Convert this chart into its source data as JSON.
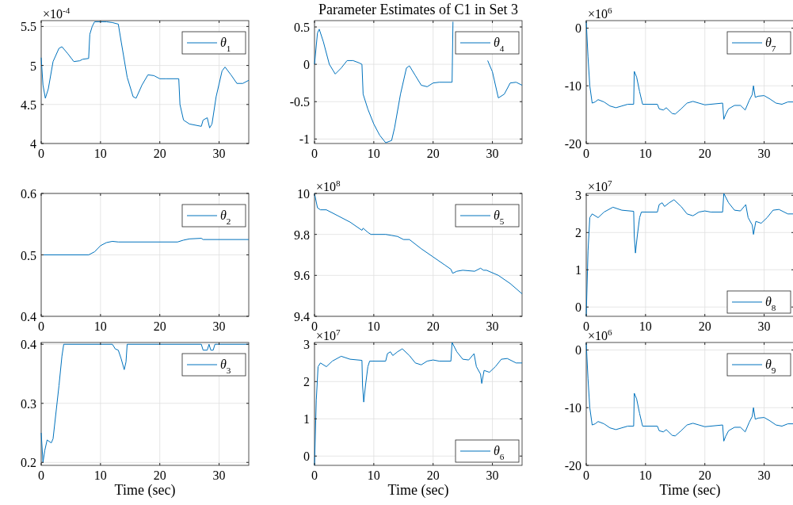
{
  "chart_data": [
    {
      "type": "line",
      "x": [
        0,
        0.3,
        0.7,
        1.2,
        2,
        3,
        3.5,
        4.5,
        5.5,
        6.5,
        7,
        8,
        8.2,
        8.6,
        9,
        10,
        11,
        12,
        13,
        13.5,
        14.5,
        15.5,
        16,
        17,
        18,
        19,
        20,
        21,
        23.2,
        23.4,
        24,
        25,
        27,
        27.3,
        28,
        28.4,
        28.8,
        29.5,
        30.5,
        31,
        32,
        33,
        34,
        35
      ],
      "series": [
        {
          "name": "θ$_{1}$",
          "color": "#0072bd",
          "values": [
            5.1,
            4.75,
            4.58,
            4.7,
            5.05,
            5.22,
            5.24,
            5.15,
            5.05,
            5.06,
            5.08,
            5.09,
            5.4,
            5.5,
            5.56,
            5.56,
            5.56,
            5.55,
            5.53,
            5.3,
            4.85,
            4.6,
            4.58,
            4.75,
            4.88,
            4.87,
            4.83,
            4.83,
            4.83,
            4.5,
            4.3,
            4.25,
            4.22,
            4.3,
            4.33,
            4.2,
            4.25,
            4.6,
            4.93,
            4.98,
            4.88,
            4.77,
            4.77,
            4.81
          ]
        }
      ],
      "xlim": [
        0,
        35
      ],
      "xticks": [
        0,
        10,
        20,
        30
      ],
      "ylim": [
        4,
        5.575
      ],
      "yticks": [
        4,
        4.5,
        5,
        5.5
      ],
      "grid": true,
      "legend": "top right",
      "annotations": [
        "×10$^{-4}$"
      ]
    },
    {
      "type": "line",
      "title": "Parameter Estimates of C1 in Set 3",
      "x": [
        0,
        0.5,
        0.8,
        1.5,
        2.5,
        3.5,
        4.5,
        5.5,
        6.5,
        7.5,
        8,
        8.2,
        9,
        10,
        11,
        12,
        13,
        13.5,
        14.5,
        15.5,
        16,
        17,
        18,
        19,
        20,
        21,
        23.2,
        23.35,
        28.8,
        29.2,
        30,
        31,
        32,
        33,
        34,
        35
      ],
      "series": [
        {
          "name": "θ$_{4}$",
          "color": "#0072bd",
          "values": [
            0,
            0.42,
            0.47,
            0.3,
            0,
            -0.13,
            -0.05,
            0.05,
            0.05,
            0.02,
            0,
            -0.4,
            -0.6,
            -0.8,
            -0.95,
            -1.05,
            -1.02,
            -0.85,
            -0.4,
            -0.05,
            -0.02,
            -0.15,
            -0.28,
            -0.3,
            -0.25,
            -0.24,
            -0.24,
            0.57,
            null,
            0.05,
            -0.1,
            -0.45,
            -0.4,
            -0.25,
            -0.24,
            -0.28
          ]
        }
      ],
      "xlim": [
        0,
        35
      ],
      "xticks": [
        0,
        10,
        20,
        30
      ],
      "ylim": [
        -1.06,
        0.585
      ],
      "yticks": [
        -1,
        -0.5,
        0,
        0.5
      ],
      "grid": true,
      "legend": "top right"
    },
    {
      "type": "line",
      "x": [
        0,
        0.3,
        0.6,
        1,
        1.5,
        2,
        3,
        4,
        5,
        6,
        7,
        8,
        8.1,
        8.5,
        9,
        9.5,
        12,
        12.3,
        13,
        13.5,
        14.5,
        15,
        16,
        17,
        18,
        19,
        20,
        23,
        23.2,
        23.5,
        24,
        25,
        26,
        26.8,
        27.5,
        28,
        28.2,
        28.5,
        29,
        30,
        31,
        32,
        33,
        34,
        35
      ],
      "series": [
        {
          "name": "θ$_{7}$",
          "color": "#0072bd",
          "values": [
            1.2,
            -5,
            -10,
            -13,
            -12.8,
            -12.4,
            -12.8,
            -13.5,
            -13.8,
            -13.5,
            -13.2,
            -13.2,
            -7.5,
            -8.5,
            -11,
            -13.2,
            -13.2,
            -14,
            -14.2,
            -13.8,
            -14.8,
            -14.9,
            -14,
            -13,
            -12.7,
            -13,
            -13.3,
            -13,
            -15.8,
            -15,
            -14,
            -13.4,
            -13.4,
            -14.2,
            -12.5,
            -11.5,
            -10,
            -12,
            -11.8,
            -11.7,
            -12.3,
            -13,
            -13.2,
            -12.8,
            -12.8
          ]
        }
      ],
      "xlim": [
        0,
        35
      ],
      "xticks": [
        0,
        10,
        20,
        30
      ],
      "ylim": [
        -20,
        1.3
      ],
      "yticks": [
        -20,
        -10,
        0
      ],
      "grid": true,
      "legend": "top right",
      "annotations": [
        "×10$^{6}$"
      ]
    },
    {
      "type": "line",
      "x": [
        0,
        8,
        9,
        10,
        11,
        12,
        13,
        23,
        24,
        25,
        27,
        27.3,
        35
      ],
      "series": [
        {
          "name": "θ$_{2}$",
          "color": "#0072bd",
          "values": [
            0.5,
            0.5,
            0.505,
            0.515,
            0.52,
            0.522,
            0.521,
            0.521,
            0.524,
            0.526,
            0.527,
            0.525,
            0.525
          ]
        }
      ],
      "xlim": [
        0,
        35
      ],
      "xticks": [
        0,
        10,
        20,
        30
      ],
      "ylim": [
        0.4,
        0.6
      ],
      "yticks": [
        0.4,
        0.5,
        0.6
      ],
      "grid": true,
      "legend": "top right"
    },
    {
      "type": "line",
      "x": [
        0,
        0.5,
        1,
        2,
        4,
        6,
        8,
        8.2,
        9,
        9.5,
        12,
        13,
        14,
        15,
        16,
        18,
        20,
        22,
        23,
        23.3,
        24,
        25,
        27,
        28,
        28.5,
        29,
        31,
        33,
        35
      ],
      "series": [
        {
          "name": "θ$_{5}$",
          "color": "#0072bd",
          "values": [
            10,
            9.93,
            9.92,
            9.92,
            9.89,
            9.86,
            9.82,
            9.83,
            9.81,
            9.8,
            9.8,
            9.795,
            9.79,
            9.775,
            9.775,
            9.73,
            9.69,
            9.65,
            9.63,
            9.61,
            9.62,
            9.625,
            9.62,
            9.635,
            9.625,
            9.625,
            9.6,
            9.56,
            9.51
          ]
        }
      ],
      "xlim": [
        0,
        35
      ],
      "xticks": [
        0,
        10,
        20,
        30
      ],
      "ylim": [
        9.4,
        10
      ],
      "yticks": [
        9.4,
        9.6,
        9.8,
        10
      ],
      "grid": true,
      "legend": "top right",
      "annotations": [
        "×10$^{8}$"
      ]
    },
    {
      "type": "line",
      "x": [
        0,
        0.3,
        0.6,
        1,
        2,
        3,
        4.5,
        6,
        8,
        8.1,
        8.3,
        8.6,
        9,
        9.3,
        12,
        12.3,
        12.8,
        13.2,
        14,
        14.8,
        16,
        17,
        18,
        19,
        20,
        21,
        23,
        23.2,
        24,
        25,
        26,
        26.9,
        27.3,
        28,
        28.2,
        28.6,
        29.5,
        30.5,
        31.5,
        32.5,
        34,
        35
      ],
      "series": [
        {
          "name": "θ$_{8}$",
          "color": "#0072bd",
          "values": [
            -0.25,
            1.5,
            2.4,
            2.5,
            2.4,
            2.55,
            2.68,
            2.6,
            2.57,
            1.9,
            1.45,
            1.9,
            2.4,
            2.55,
            2.55,
            2.75,
            2.8,
            2.7,
            2.8,
            2.88,
            2.7,
            2.5,
            2.45,
            2.55,
            2.58,
            2.55,
            2.55,
            3.05,
            2.8,
            2.6,
            2.58,
            2.75,
            2.4,
            2.2,
            1.95,
            2.3,
            2.25,
            2.4,
            2.6,
            2.62,
            2.5,
            2.5
          ]
        }
      ],
      "xlim": [
        0,
        35
      ],
      "xticks": [
        0,
        10,
        20,
        30
      ],
      "ylim": [
        -0.25,
        3.05
      ],
      "yticks": [
        0,
        1,
        2,
        3
      ],
      "grid": true,
      "legend": "bottom right",
      "annotations": [
        "×10$^{7}$"
      ]
    },
    {
      "type": "line",
      "xlabel": "Time (sec)",
      "x": [
        0,
        0.3,
        0.6,
        1,
        1.7,
        2,
        3,
        3.5,
        3.8,
        12,
        12.5,
        13,
        13.5,
        14,
        14.3,
        14.5,
        27,
        27.3,
        28,
        28.3,
        28.6,
        29,
        29.3,
        35
      ],
      "series": [
        {
          "name": "θ$_{3}$",
          "color": "#0072bd",
          "values": [
            0.25,
            0.2,
            0.22,
            0.238,
            0.233,
            0.24,
            0.33,
            0.38,
            0.4,
            0.4,
            0.392,
            0.39,
            0.375,
            0.357,
            0.37,
            0.4,
            0.4,
            0.39,
            0.39,
            0.4,
            0.39,
            0.39,
            0.4,
            0.4
          ]
        }
      ],
      "xlim": [
        0,
        35
      ],
      "xticks": [
        0,
        10,
        20,
        30
      ],
      "ylim": [
        0.195,
        0.403
      ],
      "yticks": [
        0.2,
        0.3,
        0.4
      ],
      "grid": true,
      "legend": "top right"
    },
    {
      "type": "line",
      "xlabel": "Time (sec)",
      "x": [
        0,
        0.3,
        0.6,
        1,
        2,
        3,
        4.5,
        6,
        8,
        8.1,
        8.3,
        8.6,
        9,
        9.3,
        12,
        12.3,
        12.8,
        13.2,
        14,
        14.8,
        16,
        17,
        18,
        19,
        20,
        21,
        23,
        23.2,
        24,
        25,
        26,
        26.9,
        27.3,
        28,
        28.2,
        28.6,
        29.5,
        30.5,
        31.5,
        32.5,
        34,
        35
      ],
      "series": [
        {
          "name": "θ$_{6}$",
          "color": "#0072bd",
          "values": [
            -0.25,
            1.5,
            2.4,
            2.5,
            2.4,
            2.55,
            2.68,
            2.6,
            2.57,
            1.9,
            1.45,
            1.9,
            2.4,
            2.55,
            2.55,
            2.75,
            2.8,
            2.7,
            2.8,
            2.88,
            2.7,
            2.5,
            2.45,
            2.55,
            2.58,
            2.55,
            2.55,
            3.05,
            2.8,
            2.6,
            2.58,
            2.75,
            2.4,
            2.2,
            1.95,
            2.3,
            2.25,
            2.4,
            2.6,
            2.62,
            2.5,
            2.5
          ]
        }
      ],
      "xlim": [
        0,
        35
      ],
      "xticks": [
        0,
        10,
        20,
        30
      ],
      "ylim": [
        -0.25,
        3.05
      ],
      "yticks": [
        0,
        1,
        2,
        3
      ],
      "grid": true,
      "legend": "bottom right",
      "annotations": [
        "×10$^{7}$"
      ]
    },
    {
      "type": "line",
      "xlabel": "Time (sec)",
      "x": [
        0,
        0.3,
        0.6,
        1,
        1.5,
        2,
        3,
        4,
        5,
        6,
        7,
        8,
        8.1,
        8.5,
        9,
        9.5,
        12,
        12.3,
        13,
        13.5,
        14.5,
        15,
        16,
        17,
        18,
        19,
        20,
        23,
        23.2,
        23.5,
        24,
        25,
        26,
        26.8,
        27.5,
        28,
        28.2,
        28.5,
        29,
        30,
        31,
        32,
        33,
        34,
        35
      ],
      "series": [
        {
          "name": "θ$_{9}$",
          "color": "#0072bd",
          "values": [
            1.2,
            -5,
            -10,
            -13,
            -12.8,
            -12.4,
            -12.8,
            -13.5,
            -13.8,
            -13.5,
            -13.2,
            -13.2,
            -7.5,
            -8.5,
            -11,
            -13.2,
            -13.2,
            -14,
            -14.2,
            -13.8,
            -14.8,
            -14.9,
            -14,
            -13,
            -12.7,
            -13,
            -13.3,
            -13,
            -15.8,
            -15,
            -14,
            -13.4,
            -13.4,
            -14.2,
            -12.5,
            -11.5,
            -10,
            -12,
            -11.8,
            -11.7,
            -12.3,
            -13,
            -13.2,
            -12.8,
            -12.8
          ]
        }
      ],
      "xlim": [
        0,
        35
      ],
      "xticks": [
        0,
        10,
        20,
        30
      ],
      "ylim": [
        -20,
        1.3
      ],
      "yticks": [
        -20,
        -10,
        0
      ],
      "grid": true,
      "legend": "top right",
      "annotations": [
        "×10$^{6}$"
      ]
    }
  ]
}
